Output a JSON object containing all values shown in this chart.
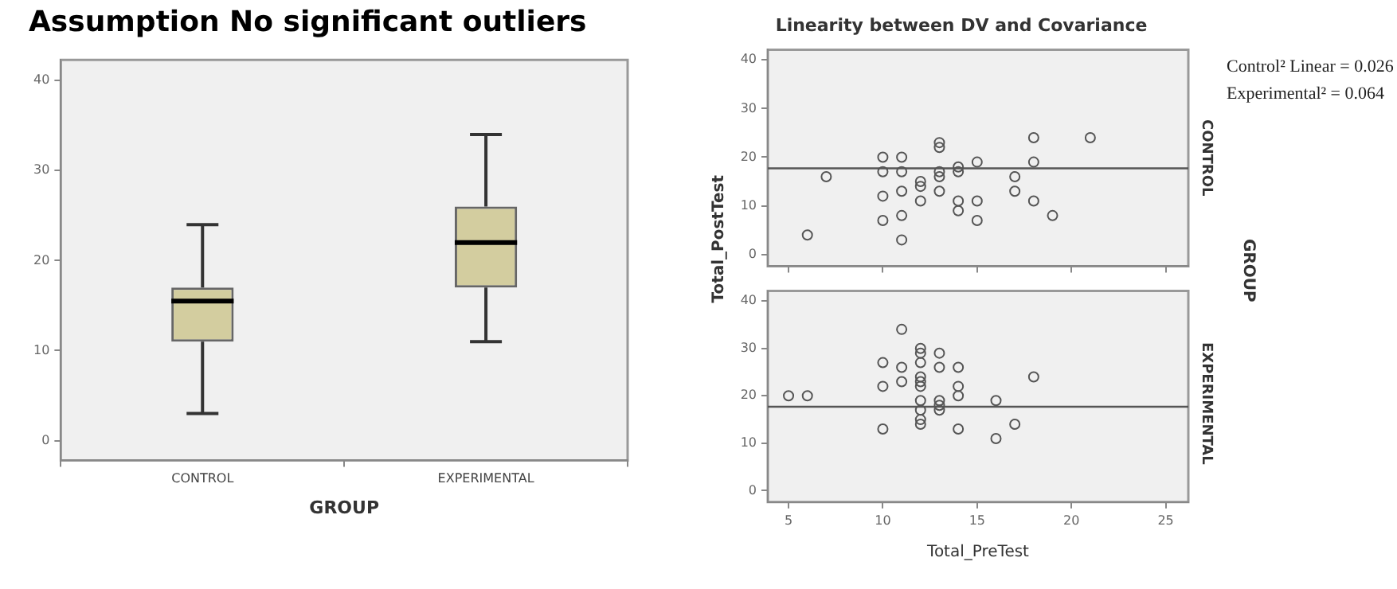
{
  "chart_data": [
    {
      "type": "box",
      "title": "Assumption No significant outliers",
      "xlabel": "GROUP",
      "categories": [
        "CONTROL",
        "EXPERIMENTAL"
      ],
      "color": "#d3cd9f",
      "boxes": [
        {
          "low": 3,
          "q1": 11,
          "median": 15.5,
          "q3": 17,
          "high": 24
        },
        {
          "low": 11,
          "q1": 17,
          "median": 22,
          "q3": 26,
          "high": 34
        }
      ],
      "ylim": [
        -2.2,
        42.3
      ],
      "yticks": [
        0,
        10,
        20,
        30,
        40
      ],
      "grid": false,
      "legend": false
    },
    {
      "type": "scatter",
      "title": "Linearity between DV and Covariance",
      "ylabel": "Total_PostTest",
      "y2label": "CONTROL",
      "annotations": [
        "GROUP",
        "Control² Linear = 0.026",
        "Experimental² = 0.064"
      ],
      "series": [
        {
          "type": "scatter",
          "marker": "circle",
          "color": "#555555",
          "x": [
            6,
            7,
            10,
            10,
            10,
            10,
            11,
            11,
            11,
            11,
            11,
            12,
            12,
            12,
            13,
            13,
            13,
            13,
            13,
            14,
            14,
            14,
            14,
            15,
            15,
            15,
            17,
            17,
            18,
            18,
            18,
            19,
            21
          ],
          "values": [
            4,
            16,
            20,
            17,
            12,
            7,
            20,
            17,
            13,
            8,
            3,
            15,
            14,
            11,
            23,
            22,
            17,
            16,
            13,
            18,
            17,
            11,
            9,
            19,
            11,
            7,
            16,
            13,
            24,
            19,
            11,
            8,
            24
          ]
        },
        {
          "type": "line",
          "marker": "none",
          "color": "#555555",
          "x": [
            3.9,
            26.2
          ],
          "values": [
            17.7,
            17.7
          ]
        }
      ],
      "xlim": [
        3.9,
        26.2
      ],
      "xticks": [
        5,
        10,
        15,
        20,
        25
      ],
      "ylim": [
        -2.4,
        42.1
      ],
      "yticks": [
        0,
        10,
        20,
        30,
        40
      ],
      "tick_labels": "y",
      "grid": false,
      "legend": false
    },
    {
      "type": "scatter",
      "xlabel": "Total_PreTest",
      "y2label": "EXPERIMENTAL",
      "series": [
        {
          "type": "scatter",
          "marker": "circle",
          "color": "#555555",
          "x": [
            5,
            6,
            10,
            10,
            10,
            11,
            11,
            11,
            12,
            12,
            12,
            12,
            12,
            12,
            12,
            12,
            12,
            12,
            13,
            13,
            13,
            13,
            13,
            14,
            14,
            14,
            14,
            16,
            16,
            17,
            18
          ],
          "values": [
            20,
            20,
            27,
            22,
            13,
            34,
            26,
            23,
            30,
            29,
            27,
            24,
            23,
            22,
            19,
            17,
            15,
            14,
            29,
            26,
            19,
            18,
            17,
            26,
            22,
            20,
            13,
            19,
            11,
            14,
            24
          ]
        },
        {
          "type": "line",
          "marker": "none",
          "color": "#555555",
          "x": [
            3.9,
            26.2
          ],
          "values": [
            17.7,
            17.7
          ]
        }
      ],
      "xlim": [
        3.9,
        26.2
      ],
      "xticks": [
        5,
        10,
        15,
        20,
        25
      ],
      "ylim": [
        -2.4,
        42.1
      ],
      "yticks": [
        0,
        10,
        20,
        30,
        40
      ],
      "grid": false,
      "legend": false
    }
  ]
}
